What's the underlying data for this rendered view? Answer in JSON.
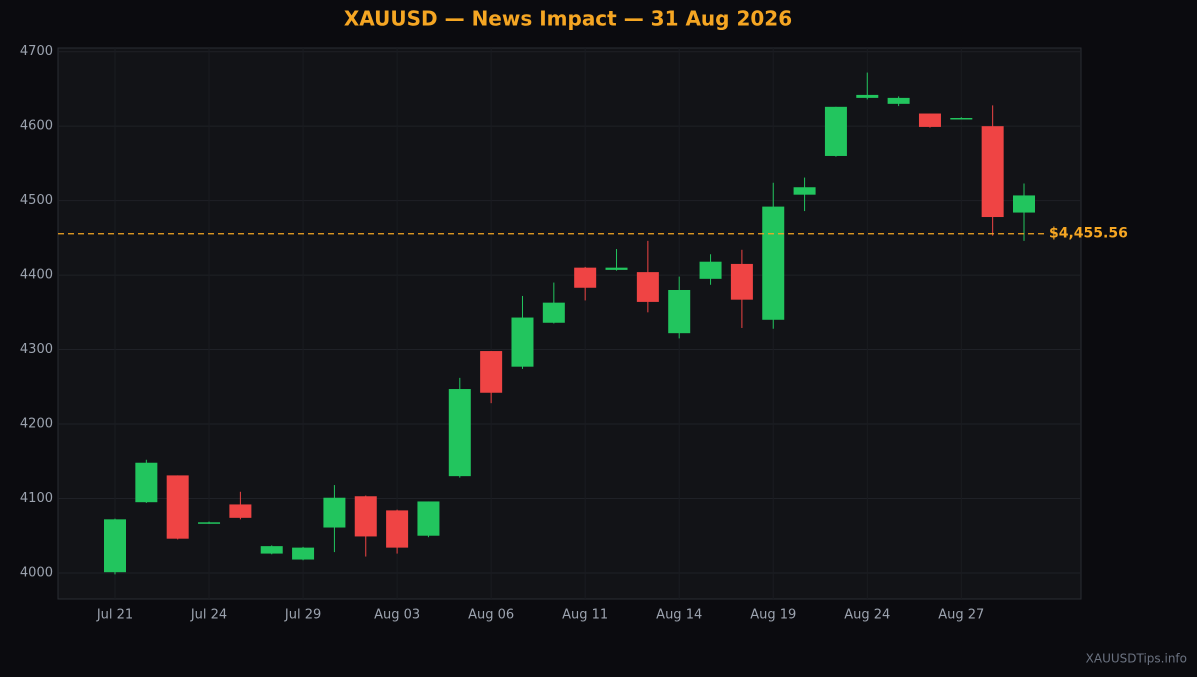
{
  "chart_data": {
    "type": "candlestick",
    "title": "XAUUSD — News Impact — 31 Aug 2026",
    "categories": [
      "Jul 21",
      null,
      null,
      "Jul 24",
      null,
      null,
      "Jul 29",
      null,
      null,
      "Aug 03",
      null,
      null,
      "Aug 06",
      null,
      null,
      "Aug 11",
      null,
      null,
      "Aug 14",
      null,
      null,
      "Aug 19",
      null,
      null,
      "Aug 24",
      null,
      null,
      "Aug 27",
      null,
      null
    ],
    "open": [
      4001,
      4095,
      4131,
      4067,
      4092,
      4026,
      4018,
      4061,
      4103,
      4084,
      4050,
      4130,
      4298,
      4277,
      4336,
      4410,
      4407,
      4404,
      4322,
      4395,
      4415,
      4340,
      4508,
      4560,
      4638,
      4630,
      4617,
      4610,
      4600,
      4484
    ],
    "high": [
      4073,
      4152,
      4131,
      4069,
      4109,
      4037,
      4035,
      4118,
      4104,
      4085,
      4096,
      4262,
      4298,
      4372,
      4390,
      4411,
      4435,
      4446,
      4398,
      4428,
      4434,
      4524,
      4531,
      4626,
      4672,
      4640,
      4617,
      4612,
      4628,
      4523
    ],
    "low": [
      3998,
      4094,
      4045,
      4066,
      4072,
      4025,
      4017,
      4028,
      4022,
      4026,
      4048,
      4128,
      4228,
      4274,
      4335,
      4366,
      4406,
      4350,
      4315,
      4387,
      4329,
      4328,
      4486,
      4559,
      4636,
      4627,
      4598,
      4609,
      4453,
      4446
    ],
    "close": [
      4072,
      4148,
      4046,
      4068,
      4074,
      4036,
      4034,
      4101,
      4049,
      4034,
      4096,
      4247,
      4242,
      4343,
      4363,
      4383,
      4410,
      4364,
      4380,
      4418,
      4367,
      4492,
      4518,
      4626,
      4642,
      4638,
      4599,
      4611,
      4478,
      4507
    ],
    "up_color": "#22c55e",
    "down_color": "#ef4444",
    "current_price": {
      "value": 4455.56,
      "label": "$4,455.56"
    },
    "current_price_color": "#f5a623",
    "ylim": [
      3965,
      4705
    ],
    "yticks": [
      4000,
      4100,
      4200,
      4300,
      4400,
      4500,
      4600,
      4700
    ],
    "grid": true,
    "watermark": "XAUUSDTips.info"
  }
}
